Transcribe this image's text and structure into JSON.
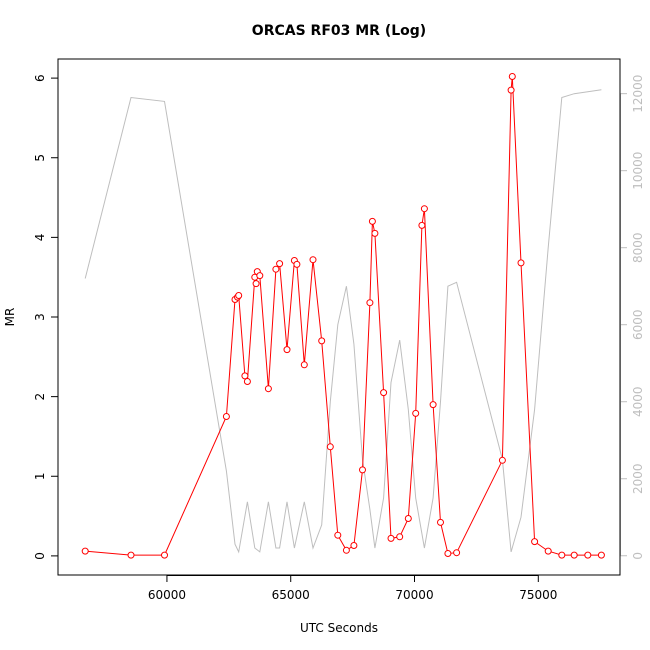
{
  "chart_data": {
    "type": "line",
    "title": "ORCAS RF03 MR (Log)",
    "xlabel": "UTC Seconds",
    "ylabel": "MR",
    "xlim": [
      55600,
      78300
    ],
    "ylim": [
      -0.24,
      6.24
    ],
    "y2lim": [
      -500,
      12900
    ],
    "x_ticks": [
      60000,
      65000,
      70000,
      75000
    ],
    "y_ticks": [
      0,
      1,
      2,
      3,
      4,
      5,
      6
    ],
    "y2_ticks": [
      0,
      2000,
      4000,
      6000,
      8000,
      10000,
      12000
    ],
    "grid": false,
    "legend": "none",
    "series": [
      {
        "color": "#ff0000",
        "axis": "left",
        "marker": "open-circle",
        "x": [
          56700,
          58550,
          59900,
          62400,
          62750,
          62850,
          62900,
          63150,
          63250,
          63550,
          63600,
          63650,
          63750,
          64100,
          64400,
          64550,
          64850,
          65150,
          65250,
          65550,
          65900,
          66250,
          66600,
          66900,
          67250,
          67550,
          67900,
          68200,
          68300,
          68400,
          68750,
          69050,
          69400,
          69750,
          70050,
          70300,
          70400,
          70750,
          71050,
          71350,
          71700,
          73550,
          73900,
          73950,
          74300,
          74850,
          75400,
          75950,
          76450,
          77000,
          77550
        ],
        "y": [
          0.06,
          0.01,
          0.01,
          1.75,
          3.22,
          3.25,
          3.27,
          2.26,
          2.19,
          3.5,
          3.42,
          3.57,
          3.52,
          2.1,
          3.6,
          3.67,
          2.59,
          3.71,
          3.66,
          2.4,
          3.72,
          2.7,
          1.37,
          0.26,
          0.07,
          0.13,
          1.08,
          3.18,
          4.2,
          4.05,
          2.05,
          0.22,
          0.24,
          0.47,
          1.79,
          4.15,
          4.36,
          1.9,
          0.42,
          0.03,
          0.04,
          1.2,
          5.85,
          6.02,
          3.68,
          0.18,
          0.06,
          0.01,
          0.01,
          0.01,
          0.01
        ]
      },
      {
        "color": "#bebebe",
        "axis": "right",
        "marker": "none",
        "x": [
          56700,
          58550,
          59900,
          62400,
          62750,
          62900,
          63250,
          63550,
          63750,
          64100,
          64400,
          64550,
          64850,
          65150,
          65550,
          65900,
          66250,
          66600,
          66900,
          67250,
          67550,
          67900,
          68200,
          68400,
          68750,
          69050,
          69400,
          69750,
          70050,
          70400,
          70750,
          71050,
          71350,
          71700,
          73550,
          73900,
          74300,
          74850,
          75400,
          75950,
          76450,
          77550
        ],
        "y": [
          7200,
          11900,
          11800,
          2200,
          300,
          100,
          1400,
          200,
          100,
          1400,
          200,
          200,
          1400,
          200,
          1400,
          200,
          800,
          4000,
          6000,
          7000,
          5500,
          2500,
          1200,
          200,
          1500,
          4500,
          5600,
          3800,
          1500,
          200,
          1500,
          4000,
          7000,
          7100,
          2500,
          100,
          1000,
          3800,
          8000,
          11900,
          12000,
          12100
        ]
      }
    ]
  }
}
